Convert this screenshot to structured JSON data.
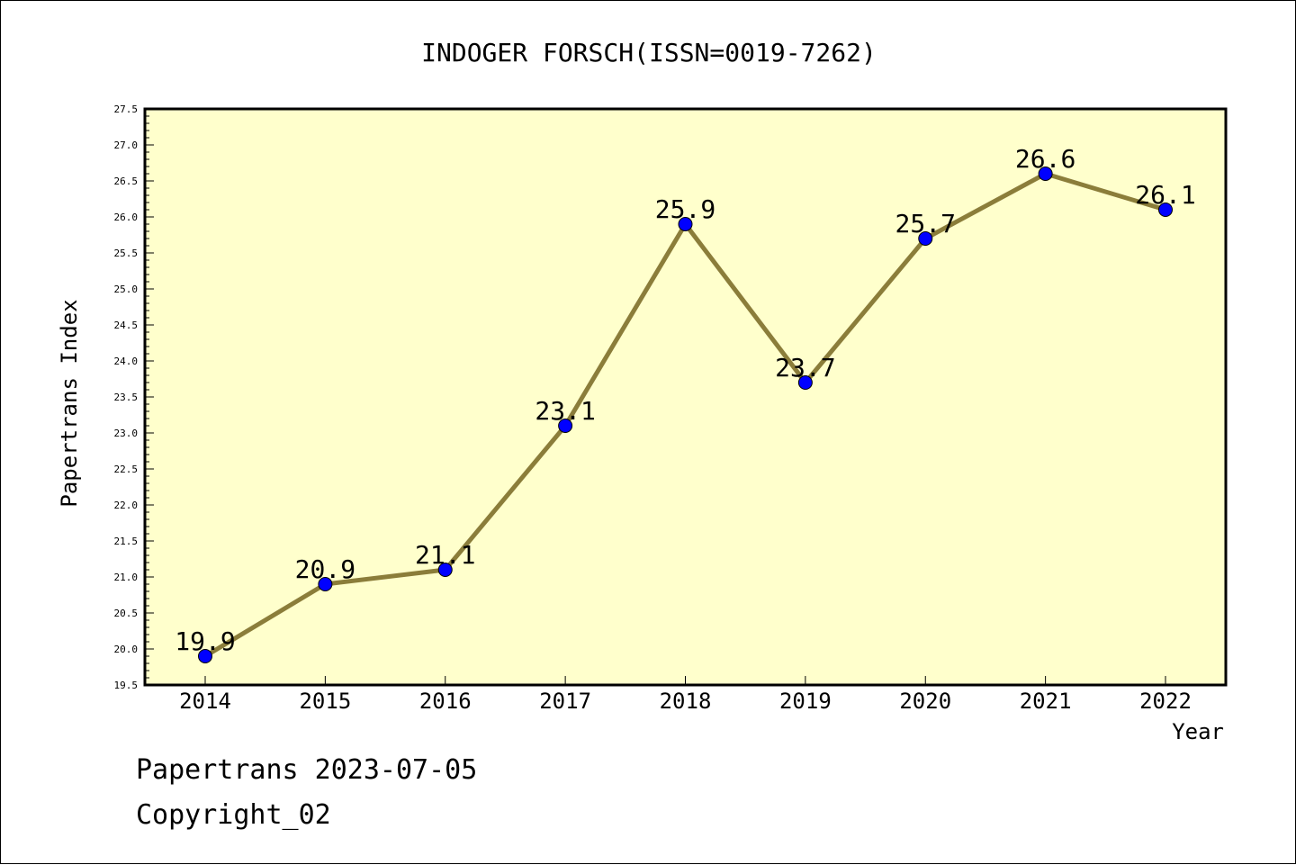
{
  "chart_data": {
    "type": "line",
    "title": "INDOGER FORSCH(ISSN=0019-7262)",
    "xlabel": "Year",
    "ylabel": "Papertrans Index",
    "categories": [
      "2014",
      "2015",
      "2016",
      "2017",
      "2018",
      "2019",
      "2020",
      "2021",
      "2022"
    ],
    "series": [
      {
        "values": [
          19.9,
          20.9,
          21.1,
          23.1,
          25.9,
          23.7,
          25.7,
          26.6,
          26.1
        ]
      }
    ],
    "data_labels": [
      "19.9",
      "20.9",
      "21.1",
      "23.1",
      "25.9",
      "23.7",
      "25.7",
      "26.6",
      "26.1"
    ],
    "ylim": [
      19.5,
      27.5
    ],
    "yticks": [
      "19.5",
      "20.0",
      "20.5",
      "21.0",
      "21.5",
      "22.0",
      "22.5",
      "23.0",
      "23.5",
      "24.0",
      "24.5",
      "25.0",
      "25.5",
      "26.0",
      "26.5",
      "27.0",
      "27.5"
    ],
    "grid": false,
    "legend": "none",
    "colors": {
      "plot_background": "#ffffcc",
      "line": "#8b7d3a",
      "marker": "#0000ff"
    }
  },
  "footer": {
    "credit": "Papertrans 2023-07-05",
    "copyright": "Copyright_02"
  }
}
